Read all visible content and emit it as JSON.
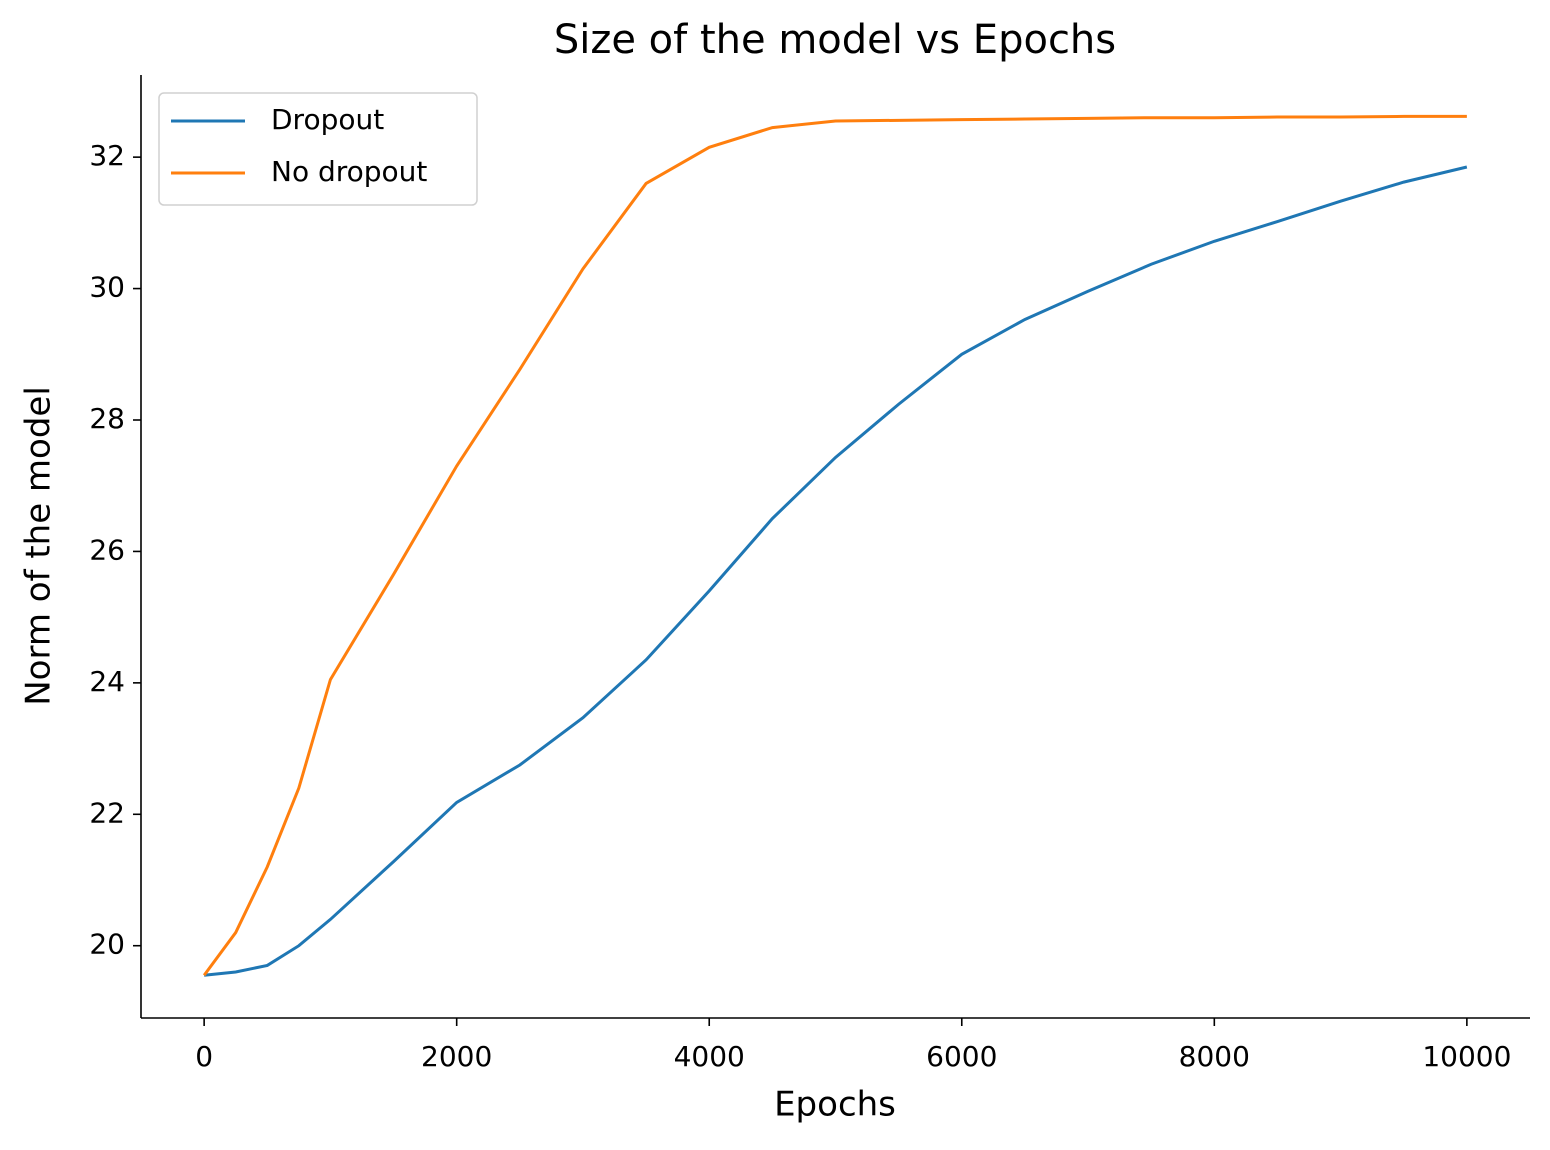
{
  "chart_data": {
    "type": "line",
    "title": "Size of the model vs Epochs",
    "x_label": "Epochs",
    "y_label": "Norm of the model",
    "x": [
      0,
      250,
      500,
      750,
      1000,
      1500,
      2000,
      2500,
      3000,
      3500,
      4000,
      4500,
      5000,
      5500,
      6000,
      6500,
      7000,
      7500,
      8000,
      8500,
      9000,
      9500,
      10000
    ],
    "series": [
      {
        "name": "Dropout",
        "color": "#1f77b4",
        "values": [
          19.55,
          19.6,
          19.7,
          20.0,
          20.4,
          21.28,
          22.18,
          22.75,
          23.47,
          24.35,
          25.4,
          26.5,
          27.43,
          28.24,
          29.0,
          29.53,
          29.96,
          30.37,
          30.72,
          31.02,
          31.33,
          31.62,
          31.85
        ]
      },
      {
        "name": "No dropout",
        "color": "#ff7f0e",
        "values": [
          19.55,
          20.2,
          21.2,
          22.4,
          24.05,
          25.65,
          27.3,
          28.77,
          30.3,
          31.6,
          32.15,
          32.45,
          32.55,
          32.56,
          32.57,
          32.58,
          32.59,
          32.6,
          32.6,
          32.61,
          32.61,
          32.62,
          32.62
        ]
      }
    ],
    "xlim": [
      -500,
      10500
    ],
    "ylim": [
      18.9,
      33.25
    ],
    "xticks": [
      0,
      2000,
      4000,
      6000,
      8000,
      10000
    ],
    "yticks": [
      20,
      22,
      24,
      26,
      28,
      30,
      32
    ],
    "legend": "upper left"
  }
}
